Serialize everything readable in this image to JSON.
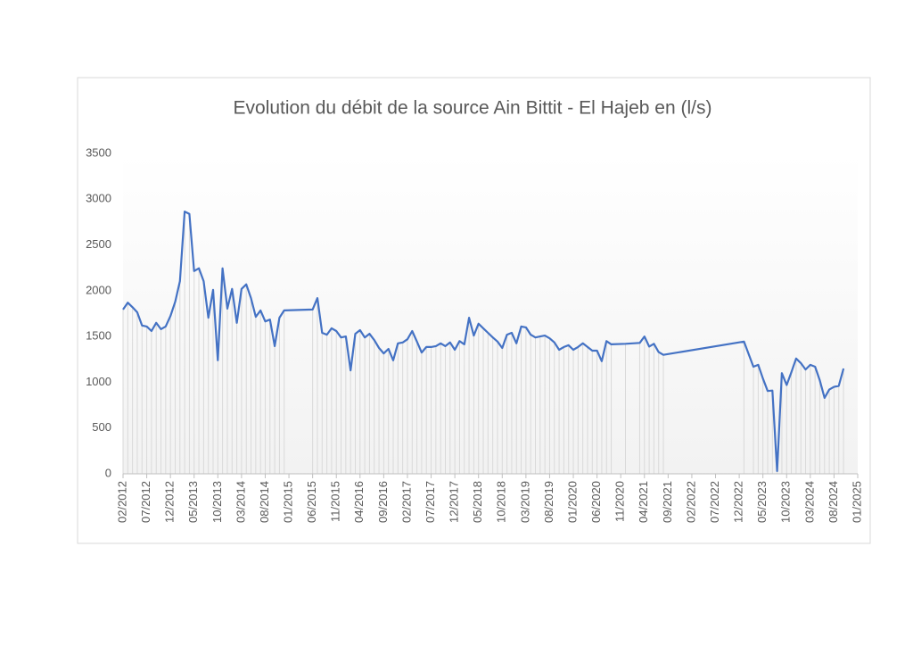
{
  "chart_data": {
    "type": "line",
    "title": "Evolution du débit de la source Ain Bittit - El Hajeb en (l/s)",
    "color": "#4472c4",
    "drop_lines": true,
    "drop_line_color": "#d9d9d9",
    "x": [
      "02/2012",
      "03/2012",
      "04/2012",
      "05/2012",
      "06/2012",
      "07/2012",
      "08/2012",
      "09/2012",
      "10/2012",
      "11/2012",
      "12/2012",
      "01/2013",
      "02/2013",
      "03/2013",
      "04/2013",
      "05/2013",
      "06/2013",
      "07/2013",
      "08/2013",
      "09/2013",
      "10/2013",
      "11/2013",
      "12/2013",
      "01/2014",
      "02/2014",
      "03/2014",
      "04/2014",
      "05/2014",
      "06/2014",
      "07/2014",
      "08/2014",
      "09/2014",
      "10/2014",
      "11/2014",
      "12/2014",
      "06/2015",
      "07/2015",
      "08/2015",
      "09/2015",
      "10/2015",
      "11/2015",
      "12/2015",
      "01/2016",
      "02/2016",
      "03/2016",
      "04/2016",
      "05/2016",
      "06/2016",
      "07/2016",
      "08/2016",
      "09/2016",
      "10/2016",
      "11/2016",
      "12/2016",
      "01/2017",
      "02/2017",
      "03/2017",
      "04/2017",
      "05/2017",
      "06/2017",
      "07/2017",
      "08/2017",
      "09/2017",
      "10/2017",
      "11/2017",
      "12/2017",
      "01/2018",
      "02/2018",
      "03/2018",
      "04/2018",
      "05/2018",
      "06/2018",
      "07/2018",
      "08/2018",
      "09/2018",
      "10/2018",
      "11/2018",
      "12/2018",
      "01/2019",
      "02/2019",
      "03/2019",
      "04/2019",
      "05/2019",
      "06/2019",
      "07/2019",
      "08/2019",
      "09/2019",
      "10/2019",
      "11/2019",
      "12/2019",
      "01/2020",
      "02/2020",
      "03/2020",
      "04/2020",
      "05/2020",
      "06/2020",
      "07/2020",
      "08/2020",
      "09/2020",
      "12/2020",
      "03/2021",
      "04/2021",
      "05/2021",
      "06/2021",
      "07/2021",
      "08/2021",
      "01/2023",
      "03/2023",
      "04/2023",
      "05/2023",
      "06/2023",
      "07/2023",
      "08/2023",
      "09/2023",
      "10/2023",
      "11/2023",
      "12/2023",
      "01/2024",
      "02/2024",
      "03/2024",
      "04/2024",
      "05/2024",
      "06/2024",
      "07/2024",
      "08/2024",
      "09/2024",
      "10/2024"
    ],
    "values": [
      1795,
      1870,
      1820,
      1765,
      1620,
      1610,
      1560,
      1650,
      1580,
      1610,
      1725,
      1880,
      2105,
      2865,
      2840,
      2215,
      2245,
      2105,
      1705,
      2010,
      1240,
      2245,
      1805,
      2020,
      1650,
      2020,
      2070,
      1920,
      1715,
      1785,
      1665,
      1685,
      1395,
      1705,
      1785,
      1795,
      1920,
      1540,
      1520,
      1590,
      1560,
      1490,
      1500,
      1130,
      1530,
      1570,
      1490,
      1530,
      1460,
      1375,
      1315,
      1365,
      1240,
      1425,
      1435,
      1470,
      1560,
      1445,
      1325,
      1385,
      1385,
      1395,
      1425,
      1395,
      1435,
      1355,
      1450,
      1415,
      1705,
      1510,
      1640,
      1590,
      1540,
      1490,
      1445,
      1375,
      1520,
      1540,
      1425,
      1610,
      1600,
      1520,
      1490,
      1500,
      1510,
      1480,
      1435,
      1355,
      1385,
      1405,
      1355,
      1385,
      1425,
      1385,
      1345,
      1345,
      1230,
      1450,
      1415,
      1420,
      1430,
      1500,
      1390,
      1420,
      1330,
      1300,
      1445,
      1170,
      1190,
      1040,
      905,
      910,
      30,
      1100,
      970,
      1110,
      1260,
      1210,
      1140,
      1190,
      1170,
      1020,
      830,
      920,
      950,
      960,
      1150
    ],
    "xlim": [
      "02/2012",
      "01/2025"
    ],
    "xticks": [
      "02/2012",
      "07/2012",
      "12/2012",
      "05/2013",
      "10/2013",
      "03/2014",
      "08/2014",
      "01/2015",
      "06/2015",
      "11/2015",
      "04/2016",
      "09/2016",
      "02/2017",
      "07/2017",
      "12/2017",
      "05/2018",
      "10/2018",
      "03/2019",
      "08/2019",
      "01/2020",
      "06/2020",
      "11/2020",
      "04/2021",
      "09/2021",
      "02/2022",
      "07/2022",
      "12/2022",
      "05/2023",
      "10/2023",
      "03/2024",
      "08/2024",
      "01/2025"
    ],
    "ylim": [
      0,
      3500
    ],
    "yticks": [
      0,
      500,
      1000,
      1500,
      2000,
      2500,
      3000,
      3500
    ],
    "grid": false
  }
}
